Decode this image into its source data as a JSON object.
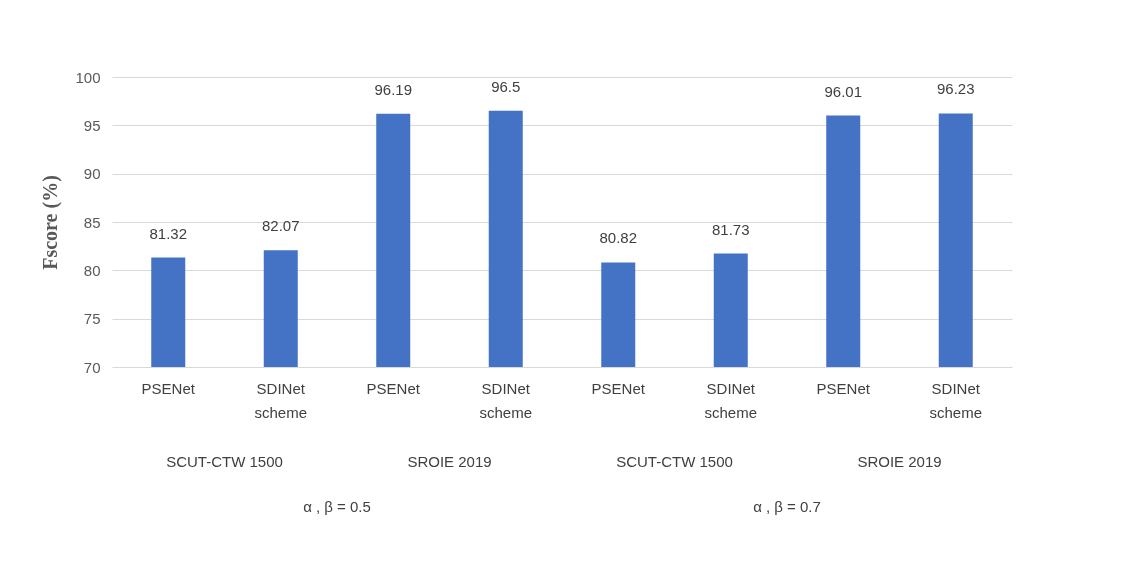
{
  "chart_data": {
    "type": "bar",
    "ylabel": "Fscore (%)",
    "categories": [
      "PSENet",
      "SDINet scheme",
      "PSENet",
      "SDINet scheme",
      "PSENet",
      "SDINet scheme",
      "PSENet",
      "SDINet scheme"
    ],
    "values": [
      81.32,
      82.07,
      96.19,
      96.5,
      80.82,
      81.73,
      96.01,
      96.23
    ],
    "color": "#4472c4",
    "ylim": [
      70,
      100
    ],
    "yticks": [
      70,
      75,
      80,
      85,
      90,
      95,
      100
    ],
    "grid": "y",
    "data_labels": true,
    "annotations": [
      "SCUT-CTW 1500",
      "SROIE 2019",
      "SCUT-CTW 1500",
      "SROIE 2019",
      "α , β = 0.5",
      "α , β = 0.7"
    ]
  }
}
